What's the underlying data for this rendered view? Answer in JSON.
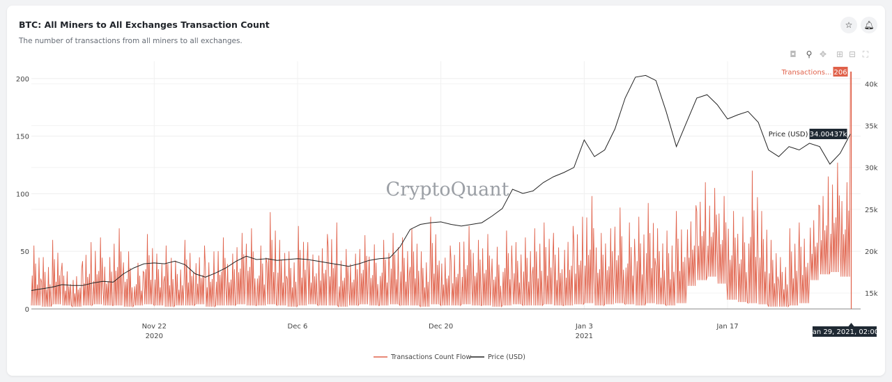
{
  "header": {
    "title": "BTC: All Miners to All Exchanges Transaction Count",
    "subtitle": "The number of transactions from all miners to all exchanges.",
    "star_icon": "star-icon",
    "bell_icon": "bell-icon"
  },
  "toolbar": [
    "camera-icon",
    "zoom-icon",
    "pan-icon",
    "zoom-in-icon",
    "zoom-out-icon",
    "autoscale-icon"
  ],
  "watermark": "CryptoQuant",
  "colors": {
    "transactions": "#e0614a",
    "price": "#222222",
    "tooltip_dark": "#1f2933"
  },
  "hover": {
    "tx_label": "Transactions...",
    "tx_value": "206",
    "price_label": "Price (USD)",
    "price_value": "34.00437k",
    "x_value": "Jan 29, 2021, 02:00"
  },
  "chart_data": {
    "type": "line",
    "x_ticks": [
      {
        "date": "2020-11-22",
        "label": "Nov 22",
        "sub": "2020"
      },
      {
        "date": "2020-12-06",
        "label": "Dec 6",
        "sub": ""
      },
      {
        "date": "2020-12-20",
        "label": "Dec 20",
        "sub": ""
      },
      {
        "date": "2021-01-03",
        "label": "Jan 3",
        "sub": "2021"
      },
      {
        "date": "2021-01-17",
        "label": "Jan 17",
        "sub": ""
      }
    ],
    "xlim": [
      "2020-11-10",
      "2021-01-30"
    ],
    "y_left": {
      "ticks": [
        0,
        50,
        100,
        150,
        200
      ],
      "range": [
        0,
        215
      ]
    },
    "y_right": {
      "ticks": [
        "15k",
        "20k",
        "25k",
        "30k",
        "35k",
        "40k"
      ],
      "tick_values": [
        15,
        20,
        25,
        30,
        35,
        40
      ],
      "range": [
        13.1,
        42.7
      ],
      "unit": "k USD"
    },
    "grid": true,
    "legend_position": "bottom",
    "dates_start": "2020-11-10",
    "series": [
      {
        "name": "Transactions Count Flow",
        "axis": "left",
        "daily_high": [
          55,
          45,
          60,
          40,
          35,
          58,
          62,
          45,
          70,
          50,
          40,
          65,
          48,
          55,
          42,
          60,
          55,
          50,
          62,
          48,
          66,
          70,
          55,
          84,
          60,
          50,
          72,
          58,
          65,
          75,
          52,
          48,
          64,
          56,
          60,
          66,
          62,
          70,
          50,
          80,
          55,
          58,
          72,
          60,
          65,
          54,
          68,
          58,
          62,
          70,
          75,
          66,
          72,
          80,
          98,
          66,
          70,
          88,
          75,
          80,
          92,
          70,
          68,
          85,
          90,
          110,
          105,
          98,
          85,
          80,
          120,
          85,
          60,
          45,
          70,
          75,
          90,
          115,
          127,
          110,
          206
        ],
        "daily_low": [
          3,
          2,
          4,
          3,
          2,
          3,
          4,
          3,
          3,
          2,
          3,
          4,
          3,
          2,
          3,
          3,
          4,
          2,
          3,
          3,
          4,
          3,
          3,
          4,
          3,
          2,
          3,
          4,
          3,
          3,
          2,
          3,
          4,
          3,
          3,
          4,
          3,
          3,
          2,
          4,
          3,
          3,
          4,
          3,
          3,
          2,
          3,
          4,
          3,
          3,
          4,
          3,
          3,
          4,
          5,
          3,
          4,
          5,
          4,
          3,
          5,
          4,
          3,
          5,
          20,
          25,
          28,
          22,
          8,
          6,
          5,
          4,
          2,
          2,
          3,
          5,
          25,
          30,
          32,
          28,
          30
        ]
      },
      {
        "name": "Price (USD)",
        "axis": "right",
        "daily_k": [
          15.3,
          15.5,
          15.7,
          16.0,
          15.9,
          15.9,
          16.2,
          16.4,
          16.3,
          17.3,
          18.0,
          18.5,
          18.6,
          18.5,
          18.8,
          18.4,
          17.3,
          16.9,
          17.4,
          18.0,
          18.8,
          19.4,
          19.0,
          19.1,
          18.9,
          19.0,
          19.1,
          19.0,
          18.8,
          18.6,
          18.4,
          18.2,
          18.5,
          18.9,
          19.1,
          19.2,
          20.5,
          22.6,
          23.2,
          23.4,
          23.5,
          23.2,
          23.0,
          23.2,
          23.4,
          24.2,
          25.1,
          27.4,
          26.9,
          27.2,
          28.2,
          28.9,
          29.4,
          30.0,
          33.3,
          31.3,
          32.1,
          34.6,
          38.3,
          40.8,
          41.0,
          40.4,
          36.7,
          32.5,
          35.4,
          38.3,
          38.7,
          37.5,
          35.8,
          36.3,
          36.7,
          35.4,
          32.1,
          31.3,
          32.5,
          32.1,
          32.9,
          32.5,
          30.4,
          31.7,
          34.0
        ]
      }
    ]
  }
}
